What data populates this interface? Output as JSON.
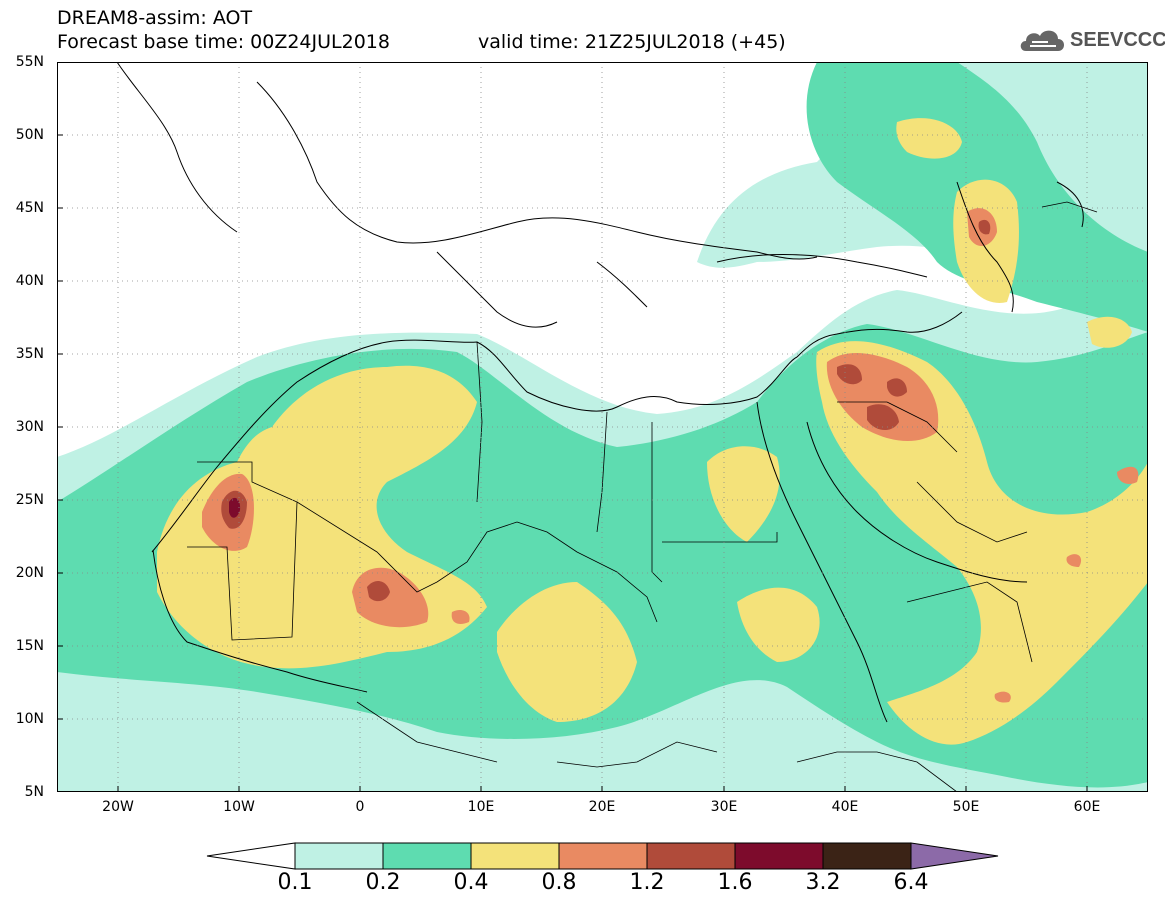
{
  "header": {
    "title": "DREAM8-assim: AOT",
    "forecast_base": "Forecast base time: 00Z24JUL2018",
    "valid_time": "valid time: 21Z25JUL2018 (+45)"
  },
  "logo": {
    "text": "SEEVCCC",
    "icon": "cloud-icon"
  },
  "axes": {
    "lat_labels": [
      "55N",
      "50N",
      "45N",
      "40N",
      "35N",
      "30N",
      "25N",
      "20N",
      "15N",
      "10N",
      "5N"
    ],
    "lon_labels": [
      "20W",
      "10W",
      "0",
      "10E",
      "20E",
      "30E",
      "40E",
      "50E",
      "60E"
    ],
    "lat_range": [
      5,
      55
    ],
    "lon_range": [
      -25,
      65
    ],
    "grid": "dotted"
  },
  "colorbar": {
    "labels": [
      "0.1",
      "0.2",
      "0.4",
      "0.8",
      "1.2",
      "1.6",
      "3.2",
      "6.4"
    ],
    "colors": [
      "#ffffff",
      "#bff1e4",
      "#5edcb0",
      "#f4e27a",
      "#e98a62",
      "#b04b3a",
      "#7d0b2c",
      "#3b2316",
      "#8c6aa8"
    ]
  }
}
